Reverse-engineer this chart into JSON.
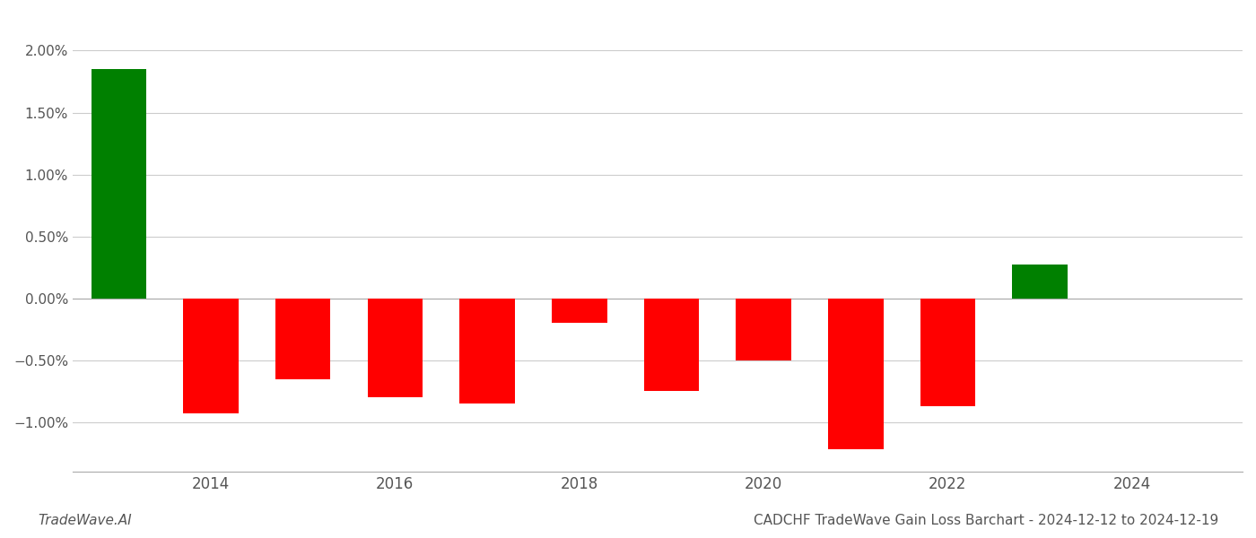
{
  "years": [
    2013,
    2014,
    2015,
    2016,
    2017,
    2018,
    2019,
    2020,
    2021,
    2022,
    2023
  ],
  "values": [
    0.0185,
    -0.0093,
    -0.0065,
    -0.008,
    -0.0085,
    -0.002,
    -0.0075,
    -0.005,
    -0.0122,
    -0.0087,
    0.0027
  ],
  "bar_colors": [
    "#008000",
    "#ff0000",
    "#ff0000",
    "#ff0000",
    "#ff0000",
    "#ff0000",
    "#ff0000",
    "#ff0000",
    "#ff0000",
    "#ff0000",
    "#008000"
  ],
  "title": "CADCHF TradeWave Gain Loss Barchart - 2024-12-12 to 2024-12-19",
  "watermark": "TradeWave.AI",
  "ylim": [
    -0.014,
    0.023
  ],
  "yticks": [
    -0.01,
    -0.005,
    0.0,
    0.005,
    0.01,
    0.015,
    0.02
  ],
  "background_color": "#ffffff",
  "grid_color": "#cccccc",
  "bar_width": 0.6,
  "xlim": [
    2012.5,
    2025.2
  ],
  "xticks": [
    2014,
    2016,
    2018,
    2020,
    2022,
    2024
  ]
}
